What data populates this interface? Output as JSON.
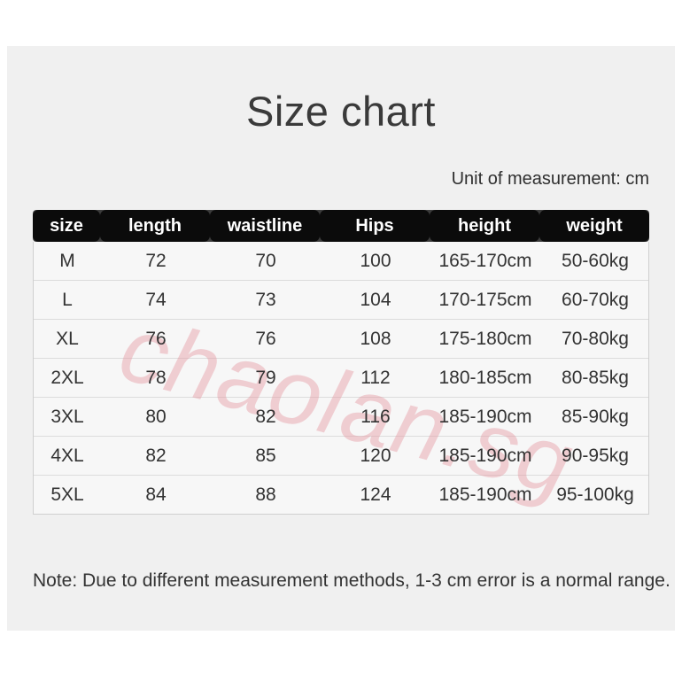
{
  "header": {
    "title": "Size chart",
    "unit_label": "Unit of measurement: cm"
  },
  "chart_data": {
    "type": "table",
    "title": "Size chart",
    "unit": "cm",
    "columns": [
      "size",
      "length",
      "waistline",
      "Hips",
      "height",
      "weight"
    ],
    "rows": [
      [
        "M",
        "72",
        "70",
        "100",
        "165-170cm",
        "50-60kg"
      ],
      [
        "L",
        "74",
        "73",
        "104",
        "170-175cm",
        "60-70kg"
      ],
      [
        "XL",
        "76",
        "76",
        "108",
        "175-180cm",
        "70-80kg"
      ],
      [
        "2XL",
        "78",
        "79",
        "112",
        "180-185cm",
        "80-85kg"
      ],
      [
        "3XL",
        "80",
        "82",
        "116",
        "185-190cm",
        "85-90kg"
      ],
      [
        "4XL",
        "82",
        "85",
        "120",
        "185-190cm",
        "90-95kg"
      ],
      [
        "5XL",
        "84",
        "88",
        "124",
        "185-190cm",
        "95-100kg"
      ]
    ]
  },
  "watermark": {
    "text": "chaolan.sg",
    "color": "#e4949e"
  },
  "footer": {
    "note": "Note: Due to different measurement methods, 1-3 cm error is a normal range."
  },
  "colors": {
    "panel_bg": "#f0f0f0",
    "header_bg": "#0b0b0b",
    "header_text": "#ffffff",
    "row_bg": "#f7f7f7",
    "row_border": "#dcdcdc",
    "body_text": "#333333",
    "title_text": "#3a3a3a"
  }
}
